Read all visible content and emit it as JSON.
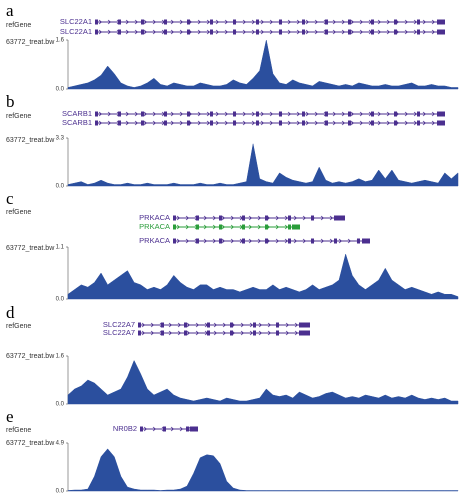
{
  "panels": [
    {
      "label": "a",
      "ref_track": "refGene",
      "genes": [
        {
          "name": "SLC22A1",
          "color": "#4b2f8f"
        },
        {
          "name": "SLC22A1",
          "color": "#4b2f8f"
        }
      ],
      "track": "63772_treat.bw",
      "color": "#2b4f9e",
      "ylim": [
        0,
        1.6
      ],
      "yticks": [
        {
          "value": 0,
          "label": "0.0"
        },
        1.6
      ],
      "values": [
        0.05,
        0.1,
        0.15,
        0.2,
        0.3,
        0.45,
        0.75,
        0.5,
        0.2,
        0.1,
        0.05,
        0.1,
        0.2,
        0.35,
        0.15,
        0.1,
        0.2,
        0.15,
        0.1,
        0.1,
        0.2,
        0.15,
        0.1,
        0.1,
        0.15,
        0.3,
        0.2,
        0.15,
        0.35,
        0.6,
        1.6,
        0.5,
        0.2,
        0.15,
        0.3,
        0.2,
        0.15,
        0.1,
        0.25,
        0.2,
        0.15,
        0.1,
        0.15,
        0.1,
        0.2,
        0.15,
        0.1,
        0.1,
        0.15,
        0.1,
        0.1,
        0.15,
        0.2,
        0.1,
        0.1,
        0.15,
        0.1,
        0.1,
        0.05,
        0.05
      ]
    },
    {
      "label": "b",
      "ref_track": "refGene",
      "genes": [
        {
          "name": "SCARB1",
          "color": "#4b2f8f"
        },
        {
          "name": "SCARB1",
          "color": "#4b2f8f"
        }
      ],
      "track": "63772_treat.bw",
      "color": "#2b4f9e",
      "ylim": [
        0,
        3.3
      ],
      "yticks": [
        {
          "value": 0,
          "label": "0.0"
        },
        3.3
      ],
      "values": [
        0.1,
        0.2,
        0.3,
        0.1,
        0.2,
        0.4,
        0.2,
        0.1,
        0.1,
        0.2,
        0.1,
        0.1,
        0.2,
        0.1,
        0.1,
        0.1,
        0.2,
        0.1,
        0.1,
        0.1,
        0.2,
        0.1,
        0.1,
        0.2,
        0.1,
        0.1,
        0.2,
        0.3,
        2.9,
        0.5,
        0.3,
        0.2,
        0.9,
        0.6,
        0.4,
        0.3,
        0.2,
        0.3,
        1.3,
        0.4,
        0.2,
        0.3,
        0.2,
        0.3,
        0.5,
        0.3,
        0.4,
        1.1,
        0.5,
        1.1,
        0.4,
        0.3,
        0.2,
        0.3,
        0.4,
        0.3,
        0.2,
        0.9,
        0.5,
        0.9
      ]
    },
    {
      "label": "c",
      "ref_track": "refGene",
      "genes": [
        {
          "name": "PRKACA",
          "color": "#4b2f8f"
        },
        {
          "name": "PRKACA",
          "color": "#2a9d3a"
        },
        {
          "name": "PRKACA",
          "color": "#4b2f8f"
        }
      ],
      "track": "63772_treat.bw",
      "color": "#2b4f9e",
      "ylim": [
        0,
        1.1
      ],
      "yticks": [
        {
          "value": 0,
          "label": "0.0"
        },
        1.1
      ],
      "values": [
        0.1,
        0.2,
        0.3,
        0.25,
        0.35,
        0.55,
        0.3,
        0.4,
        0.5,
        0.6,
        0.35,
        0.3,
        0.2,
        0.25,
        0.2,
        0.3,
        0.5,
        0.35,
        0.25,
        0.2,
        0.3,
        0.3,
        0.2,
        0.25,
        0.2,
        0.2,
        0.15,
        0.2,
        0.25,
        0.2,
        0.2,
        0.3,
        0.2,
        0.25,
        0.2,
        0.15,
        0.2,
        0.3,
        0.2,
        0.25,
        0.3,
        0.4,
        0.95,
        0.5,
        0.3,
        0.2,
        0.3,
        0.4,
        0.65,
        0.4,
        0.3,
        0.2,
        0.25,
        0.2,
        0.15,
        0.1,
        0.15,
        0.1,
        0.1,
        0.05
      ]
    },
    {
      "label": "d",
      "ref_track": "refGene",
      "genes": [
        {
          "name": "SLC22A7",
          "color": "#4b2f8f"
        },
        {
          "name": "SLC22A7",
          "color": "#4b2f8f"
        }
      ],
      "track": "63772_treat.bw",
      "color": "#2b4f9e",
      "ylim": [
        0,
        1.6
      ],
      "yticks": [
        {
          "value": 0,
          "label": "0.0"
        },
        1.6
      ],
      "values": [
        0.3,
        0.5,
        0.6,
        0.8,
        0.7,
        0.5,
        0.3,
        0.4,
        0.5,
        0.9,
        1.45,
        1.0,
        0.5,
        0.3,
        0.4,
        0.5,
        0.3,
        0.2,
        0.15,
        0.1,
        0.15,
        0.2,
        0.15,
        0.1,
        0.2,
        0.15,
        0.1,
        0.1,
        0.15,
        0.2,
        0.5,
        0.3,
        0.25,
        0.3,
        0.2,
        0.4,
        0.3,
        0.2,
        0.25,
        0.35,
        0.4,
        0.3,
        0.2,
        0.25,
        0.2,
        0.3,
        0.25,
        0.2,
        0.3,
        0.2,
        0.25,
        0.2,
        0.3,
        0.2,
        0.15,
        0.2,
        0.15,
        0.2,
        0.1,
        0.1
      ]
    },
    {
      "label": "e",
      "ref_track": "refGene",
      "genes": [
        {
          "name": "NR0B2",
          "color": "#4b2f8f"
        }
      ],
      "track": "63772_treat.bw",
      "color": "#2b4f9e",
      "ylim": [
        0,
        4.9
      ],
      "yticks": [
        {
          "value": 0,
          "label": "0.0"
        },
        4.9
      ],
      "values": [
        0.05,
        0.1,
        0.1,
        0.2,
        1.5,
        3.5,
        4.3,
        3.5,
        1.5,
        0.4,
        0.2,
        0.1,
        0.1,
        0.1,
        0.05,
        0.1,
        0.1,
        0.2,
        0.5,
        1.8,
        3.4,
        3.7,
        3.6,
        2.8,
        1.0,
        0.3,
        0.1,
        0.05,
        0.05,
        0.05,
        0.05,
        0.05,
        0.05,
        0.05,
        0.05,
        0.05,
        0.05,
        0.05,
        0.05,
        0.05,
        0.05,
        0.05,
        0.05,
        0.05,
        0.05,
        0.05,
        0.05,
        0.05,
        0.05,
        0.05,
        0.05,
        0.05,
        0.05,
        0.05,
        0.05,
        0.05,
        0.05,
        0.05,
        0.05,
        0.05
      ]
    }
  ]
}
